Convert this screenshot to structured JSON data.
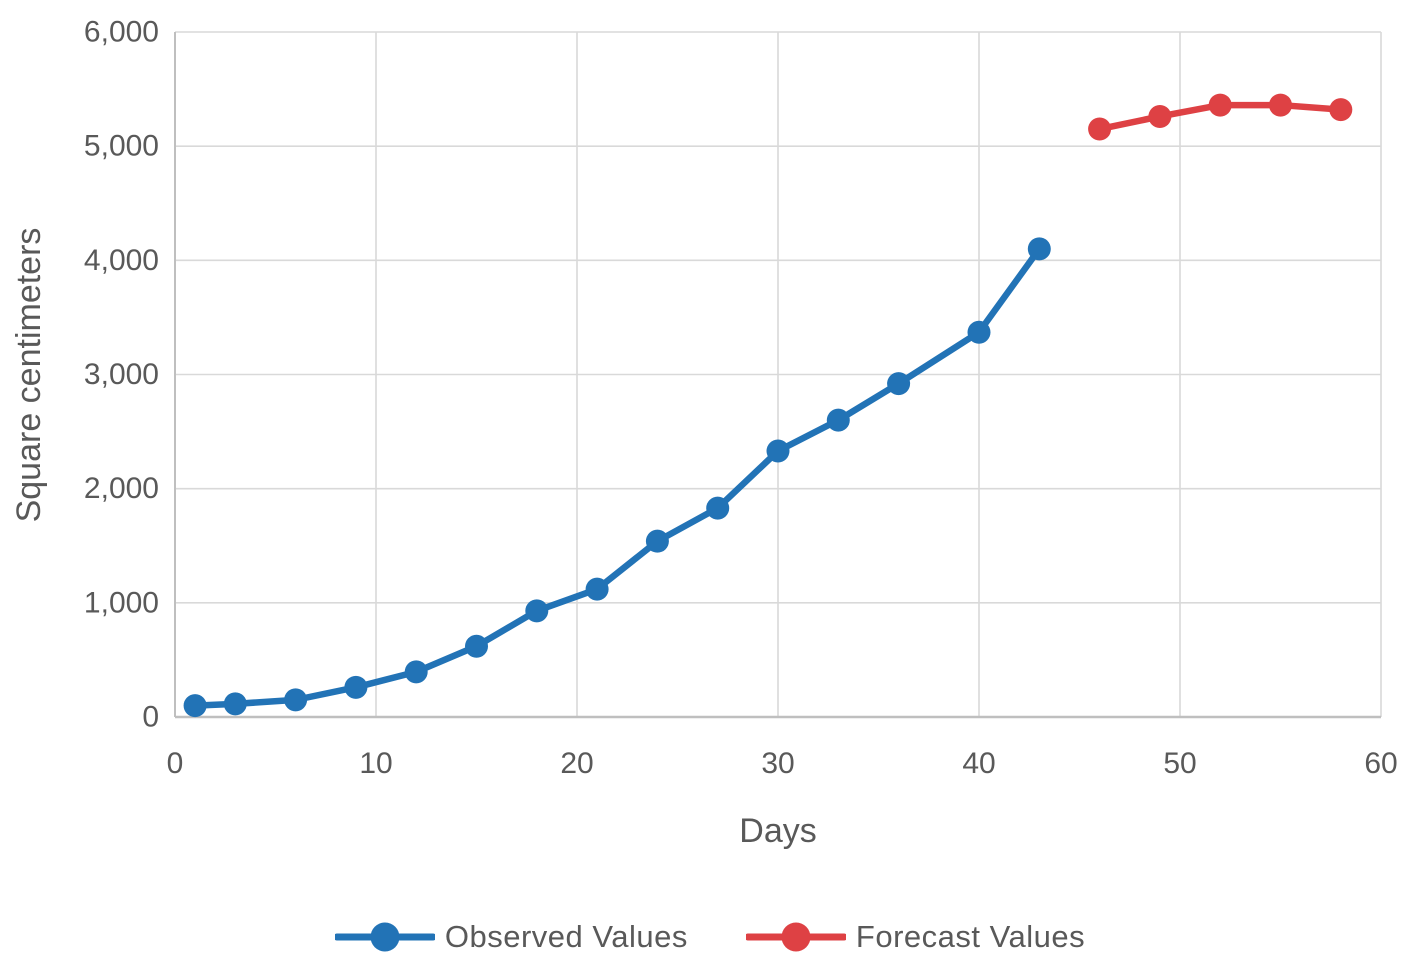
{
  "chart_data": {
    "type": "line",
    "title": "",
    "xlabel": "Days",
    "ylabel": "Square centimeters",
    "xlim": [
      0,
      60
    ],
    "ylim": [
      0,
      6000
    ],
    "x_ticks": [
      0,
      10,
      20,
      30,
      40,
      50,
      60
    ],
    "y_ticks": [
      0,
      1000,
      2000,
      3000,
      4000,
      5000,
      6000
    ],
    "grid": true,
    "legend_position": "bottom",
    "series": [
      {
        "name": "Observed Values",
        "color": "#2273B6",
        "x": [
          1,
          3,
          6,
          9,
          12,
          15,
          18,
          21,
          24,
          27,
          30,
          33,
          36,
          40,
          43
        ],
        "values": [
          100,
          115,
          150,
          260,
          395,
          620,
          930,
          1120,
          1540,
          1830,
          2330,
          2600,
          2920,
          3370,
          4100
        ]
      },
      {
        "name": "Forecast Values",
        "color": "#DE4144",
        "x": [
          46,
          49,
          52,
          55,
          58
        ],
        "values": [
          5150,
          5260,
          5360,
          5360,
          5320
        ]
      }
    ]
  },
  "colors": {
    "grid": "#D9D9D9",
    "axis": "#BFBFBF",
    "text": "#595959",
    "background": "#FFFFFF"
  }
}
